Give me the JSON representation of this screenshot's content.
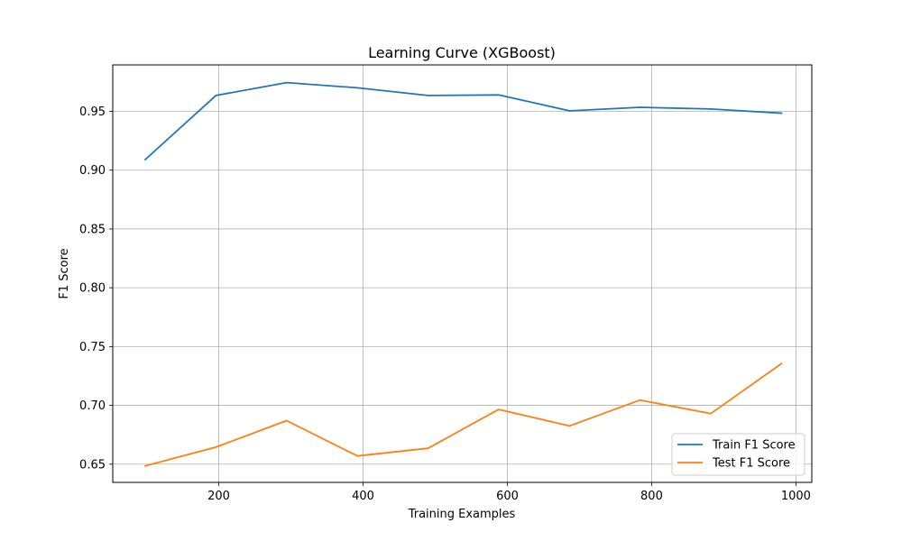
{
  "chart_data": {
    "type": "line",
    "title": "Learning Curve (XGBoost)",
    "xlabel": "Training Examples",
    "ylabel": "F1 Score",
    "xlim": [
      53,
      1022
    ],
    "ylim": [
      0.6345,
      0.9895
    ],
    "xticks": [
      200,
      400,
      600,
      800,
      1000
    ],
    "xtick_labels": [
      "200",
      "400",
      "600",
      "800",
      "1000"
    ],
    "yticks": [
      0.65,
      0.7,
      0.75,
      0.8,
      0.85,
      0.9,
      0.95
    ],
    "ytick_labels": [
      "0.65",
      "0.70",
      "0.75",
      "0.80",
      "0.85",
      "0.90",
      "0.95"
    ],
    "grid": true,
    "legend_position": "lower-right",
    "x": [
      98,
      196,
      294,
      392,
      490,
      588,
      686,
      784,
      882,
      980
    ],
    "series": [
      {
        "name": "Train F1 Score",
        "color": "#1f77b4",
        "values": [
          0.909,
          0.9635,
          0.9745,
          0.97,
          0.9635,
          0.964,
          0.9505,
          0.9535,
          0.952,
          0.9485
        ]
      },
      {
        "name": "Test F1 Score",
        "color": "#ff7f0e",
        "values": [
          0.6485,
          0.6645,
          0.687,
          0.657,
          0.6635,
          0.6965,
          0.6825,
          0.7045,
          0.693,
          0.7355
        ]
      }
    ]
  }
}
